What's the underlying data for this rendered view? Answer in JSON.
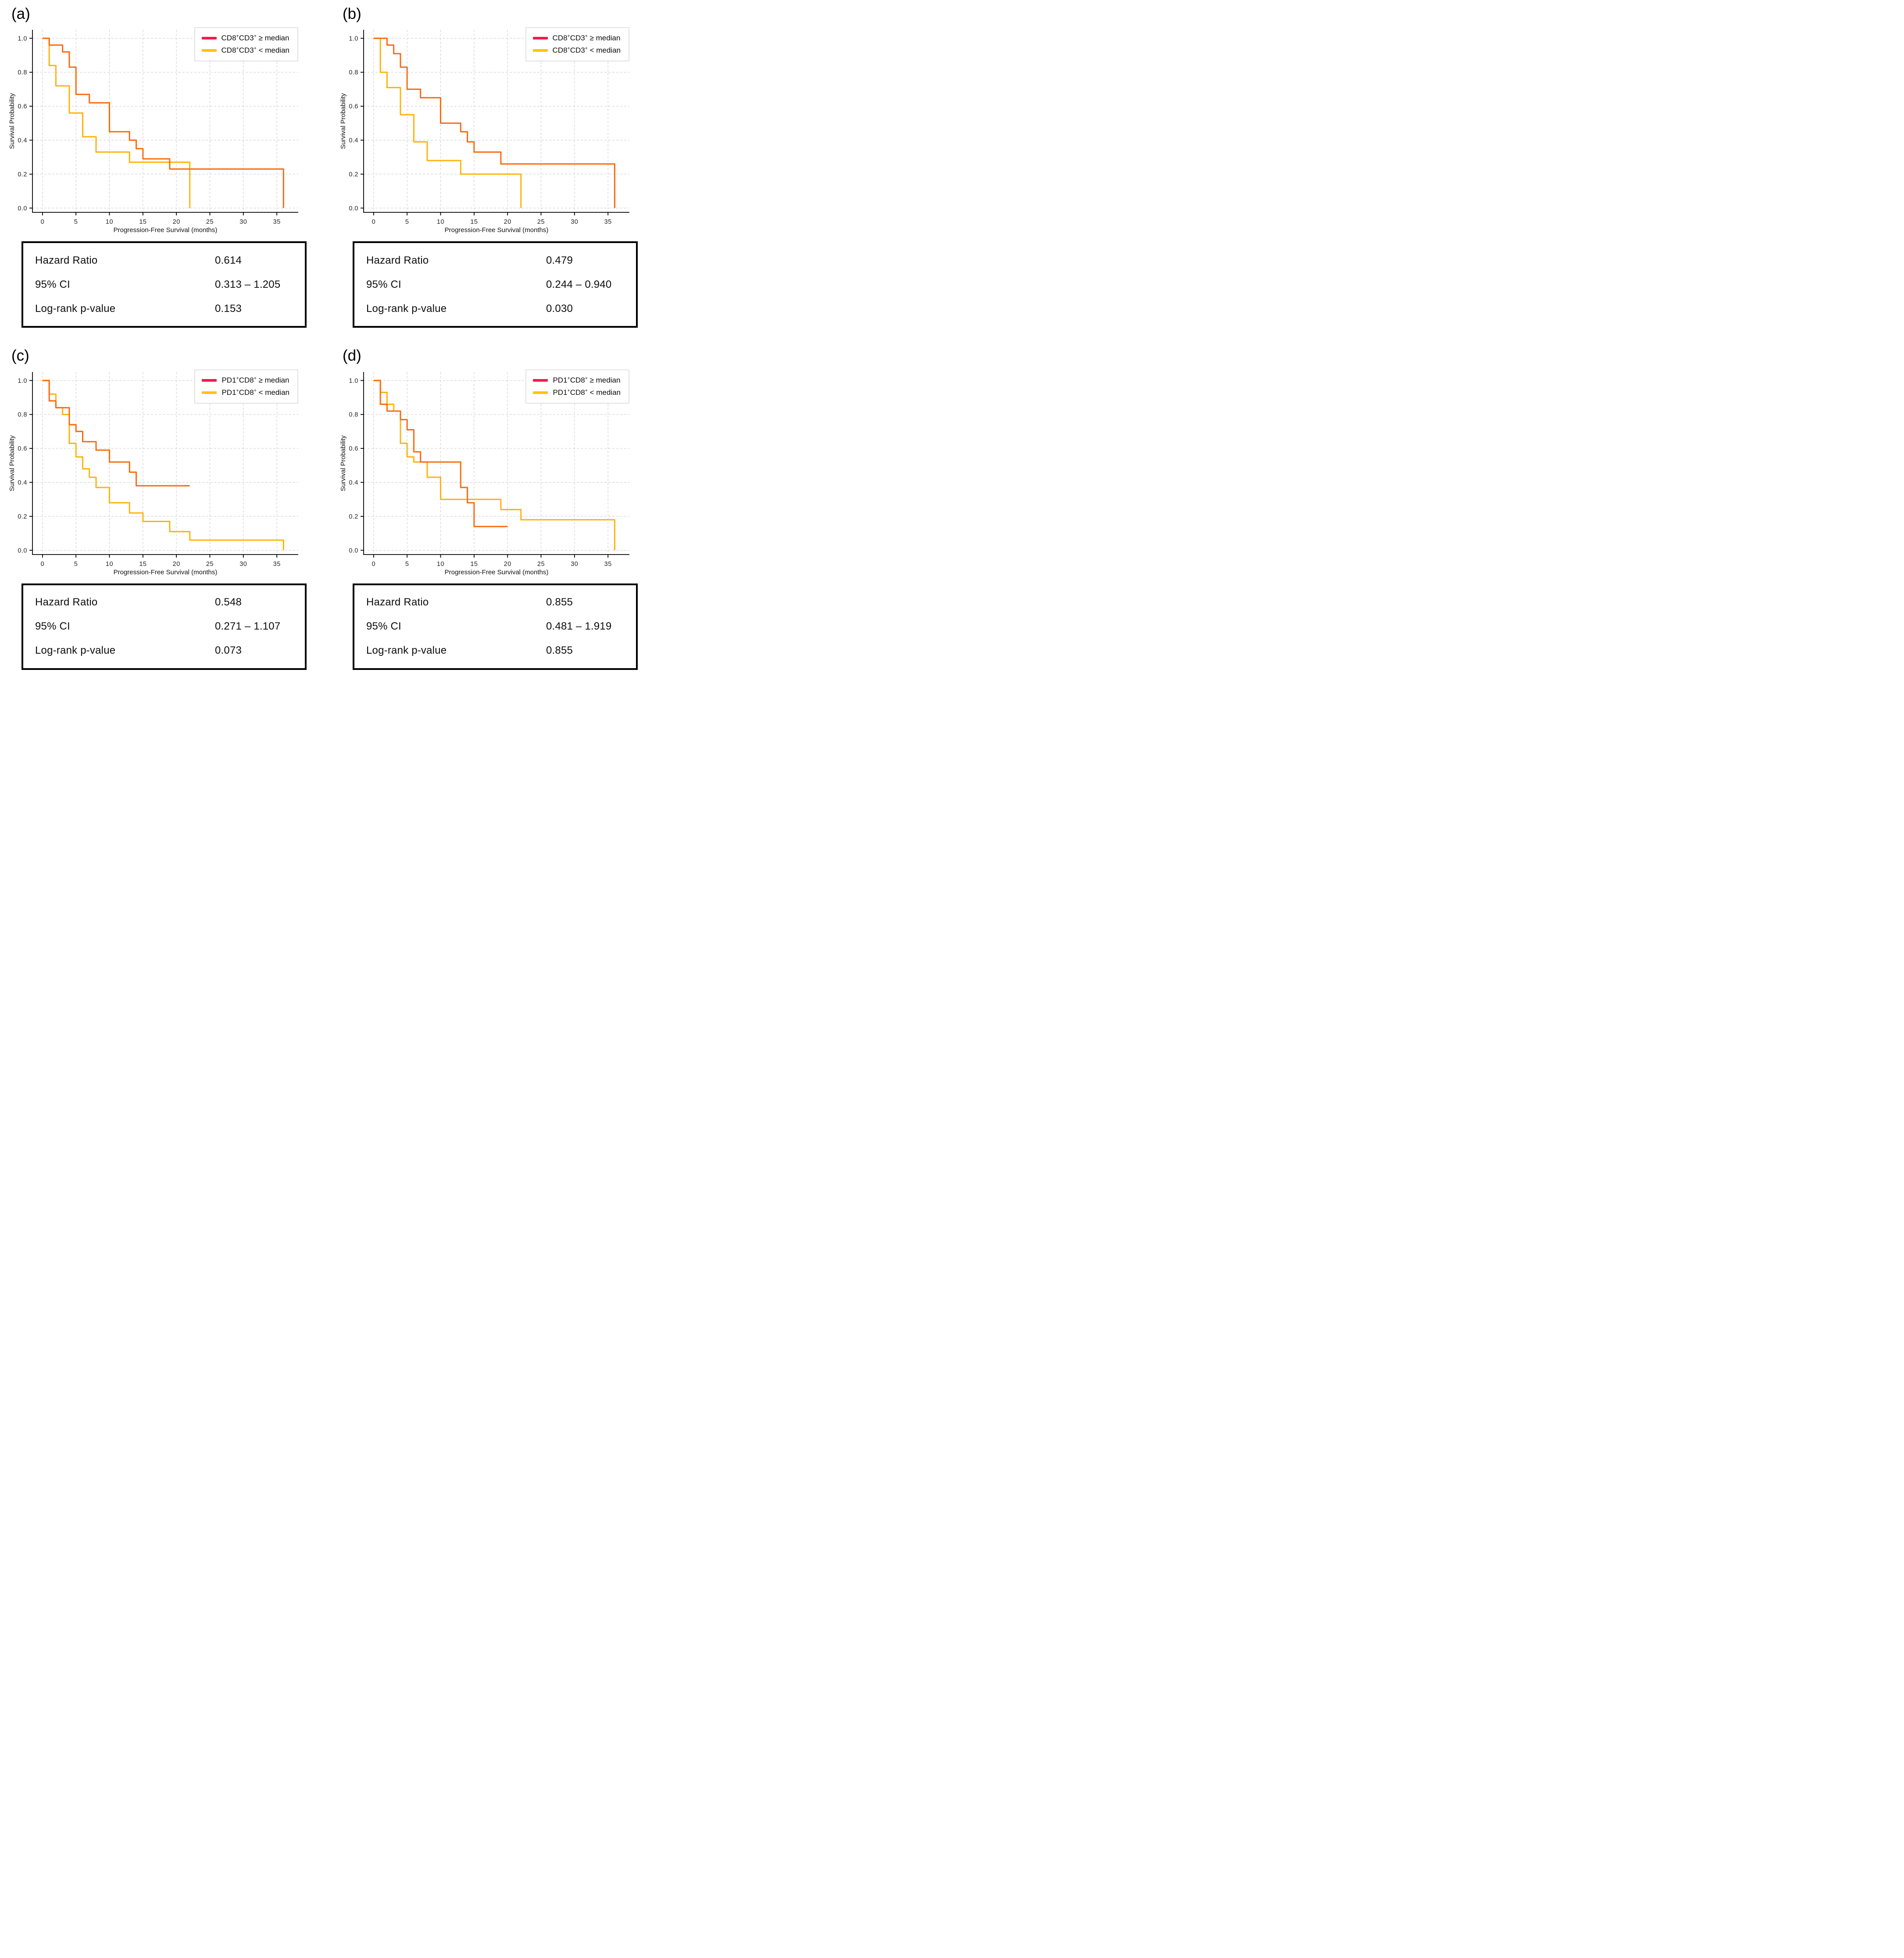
{
  "stats_labels": [
    "Hazard Ratio",
    "95% CI",
    "Log-rank p-value"
  ],
  "colors": {
    "ge_line": "#FA6A0D",
    "lt_line": "#FFB20B",
    "ge_swatch": "#F31B4C",
    "lt_swatch": "#FFC400",
    "grid": "#c9c9c9",
    "axis": "#000000"
  },
  "chart_data": [
    {
      "type": "line",
      "panel": "(a)",
      "step_mode": "post",
      "xlabel": "Progression-Free Survival (months)",
      "ylabel": "Survival Probability",
      "xlim": [
        -1.5,
        38.2
      ],
      "ylim": [
        -0.025,
        1.05
      ],
      "x_ticks": [
        0,
        5,
        10,
        15,
        20,
        25,
        30,
        35
      ],
      "x_tick_labels": [
        "0",
        "5",
        "10",
        "15",
        "20",
        "25",
        "30",
        "35"
      ],
      "y_ticks": [
        0.0,
        0.2,
        0.4,
        0.6,
        0.8,
        1.0
      ],
      "y_tick_labels": [
        "0.0",
        "0.2",
        "0.4",
        "0.6",
        "0.8",
        "1.0"
      ],
      "grid": true,
      "legend_position": "upper right",
      "series": [
        {
          "name": "CD8+CD3+ >= median",
          "color": "#FA6A0D",
          "legend_swatch": "#F31B4C",
          "steps": [
            [
              0,
              1.0
            ],
            [
              1,
              0.96
            ],
            [
              3,
              0.92
            ],
            [
              4,
              0.83
            ],
            [
              5,
              0.67
            ],
            [
              7,
              0.62
            ],
            [
              10,
              0.45
            ],
            [
              13,
              0.4
            ],
            [
              14,
              0.35
            ],
            [
              15,
              0.29
            ],
            [
              19,
              0.23
            ]
          ],
          "end_time": 36,
          "end_drop_to_zero": true
        },
        {
          "name": "CD8+CD3+ < median",
          "color": "#FFB20B",
          "legend_swatch": "#FFC400",
          "steps": [
            [
              0,
              1.0
            ],
            [
              1,
              0.84
            ],
            [
              2,
              0.72
            ],
            [
              4,
              0.56
            ],
            [
              6,
              0.42
            ],
            [
              8,
              0.33
            ],
            [
              13,
              0.27
            ]
          ],
          "end_time": 22,
          "end_drop_to_zero": true
        }
      ]
    },
    {
      "type": "line",
      "panel": "(b)",
      "step_mode": "post",
      "xlabel": "Progression-Free Survival (months)",
      "ylabel": "Survival Probability",
      "xlim": [
        -1.5,
        38.2
      ],
      "ylim": [
        -0.025,
        1.05
      ],
      "x_ticks": [
        0,
        5,
        10,
        15,
        20,
        25,
        30,
        35
      ],
      "x_tick_labels": [
        "0",
        "5",
        "10",
        "15",
        "20",
        "25",
        "30",
        "35"
      ],
      "y_ticks": [
        0.0,
        0.2,
        0.4,
        0.6,
        0.8,
        1.0
      ],
      "y_tick_labels": [
        "0.0",
        "0.2",
        "0.4",
        "0.6",
        "0.8",
        "1.0"
      ],
      "grid": true,
      "legend_position": "upper right",
      "series": [
        {
          "name": "CD8+CD3+ >= median",
          "color": "#FA6A0D",
          "legend_swatch": "#F31B4C",
          "steps": [
            [
              0,
              1.0
            ],
            [
              2,
              0.96
            ],
            [
              3,
              0.91
            ],
            [
              4,
              0.83
            ],
            [
              5,
              0.7
            ],
            [
              7,
              0.65
            ],
            [
              10,
              0.5
            ],
            [
              13,
              0.45
            ],
            [
              14,
              0.39
            ],
            [
              15,
              0.33
            ],
            [
              19,
              0.26
            ]
          ],
          "end_time": 36,
          "end_drop_to_zero": true
        },
        {
          "name": "CD8+CD3+ < median",
          "color": "#FFB20B",
          "legend_swatch": "#FFC400",
          "steps": [
            [
              0,
              1.0
            ],
            [
              1,
              0.8
            ],
            [
              2,
              0.71
            ],
            [
              4,
              0.55
            ],
            [
              6,
              0.39
            ],
            [
              8,
              0.28
            ],
            [
              13,
              0.2
            ]
          ],
          "end_time": 22,
          "end_drop_to_zero": true
        }
      ]
    },
    {
      "type": "line",
      "panel": "(c)",
      "step_mode": "post",
      "xlabel": "Progression-Free Survival (months)",
      "ylabel": "Survival Probability",
      "xlim": [
        -1.5,
        38.2
      ],
      "ylim": [
        -0.025,
        1.05
      ],
      "x_ticks": [
        0,
        5,
        10,
        15,
        20,
        25,
        30,
        35
      ],
      "x_tick_labels": [
        "0",
        "5",
        "10",
        "15",
        "20",
        "25",
        "30",
        "35"
      ],
      "y_ticks": [
        0.0,
        0.2,
        0.4,
        0.6,
        0.8,
        1.0
      ],
      "y_tick_labels": [
        "0.0",
        "0.2",
        "0.4",
        "0.6",
        "0.8",
        "1.0"
      ],
      "grid": true,
      "legend_position": "upper right",
      "series": [
        {
          "name": "PD1+CD8+ >= median",
          "color": "#FA6A0D",
          "legend_swatch": "#F31B4C",
          "steps": [
            [
              0,
              1.0
            ],
            [
              1,
              0.88
            ],
            [
              2,
              0.84
            ],
            [
              4,
              0.74
            ],
            [
              5,
              0.7
            ],
            [
              6,
              0.64
            ],
            [
              8,
              0.59
            ],
            [
              10,
              0.52
            ],
            [
              13,
              0.46
            ],
            [
              14,
              0.38
            ]
          ],
          "end_time": 22,
          "end_drop_to_zero": false
        },
        {
          "name": "PD1+CD8+ < median",
          "color": "#FFB20B",
          "legend_swatch": "#FFC400",
          "steps": [
            [
              0,
              1.0
            ],
            [
              1,
              0.92
            ],
            [
              2,
              0.84
            ],
            [
              3,
              0.8
            ],
            [
              4,
              0.63
            ],
            [
              5,
              0.55
            ],
            [
              6,
              0.48
            ],
            [
              7,
              0.43
            ],
            [
              8,
              0.37
            ],
            [
              10,
              0.28
            ],
            [
              13,
              0.22
            ],
            [
              15,
              0.17
            ],
            [
              19,
              0.11
            ],
            [
              22,
              0.06
            ]
          ],
          "end_time": 36,
          "end_drop_to_zero": true
        }
      ]
    },
    {
      "type": "line",
      "panel": "(d)",
      "step_mode": "post",
      "xlabel": "Progression-Free Survival (months)",
      "ylabel": "Survival Probability",
      "xlim": [
        -1.5,
        38.2
      ],
      "ylim": [
        -0.025,
        1.05
      ],
      "x_ticks": [
        0,
        5,
        10,
        15,
        20,
        25,
        30,
        35
      ],
      "x_tick_labels": [
        "0",
        "5",
        "10",
        "15",
        "20",
        "25",
        "30",
        "35"
      ],
      "y_ticks": [
        0.0,
        0.2,
        0.4,
        0.6,
        0.8,
        1.0
      ],
      "y_tick_labels": [
        "0.0",
        "0.2",
        "0.4",
        "0.6",
        "0.8",
        "1.0"
      ],
      "grid": true,
      "legend_position": "upper right",
      "series": [
        {
          "name": "PD1+CD8+ >= median",
          "color": "#FA6A0D",
          "legend_swatch": "#F31B4C",
          "steps": [
            [
              0,
              1.0
            ],
            [
              1,
              0.86
            ],
            [
              2,
              0.82
            ],
            [
              4,
              0.77
            ],
            [
              5,
              0.71
            ],
            [
              6,
              0.58
            ],
            [
              7,
              0.52
            ],
            [
              13,
              0.37
            ],
            [
              14,
              0.28
            ],
            [
              15,
              0.14
            ]
          ],
          "end_time": 20,
          "end_drop_to_zero": false
        },
        {
          "name": "PD1+CD8+ < median",
          "color": "#FFB20B",
          "legend_swatch": "#FFC400",
          "steps": [
            [
              0,
              1.0
            ],
            [
              1,
              0.93
            ],
            [
              2,
              0.86
            ],
            [
              3,
              0.82
            ],
            [
              4,
              0.63
            ],
            [
              5,
              0.55
            ],
            [
              6,
              0.52
            ],
            [
              8,
              0.43
            ],
            [
              10,
              0.3
            ],
            [
              19,
              0.24
            ],
            [
              22,
              0.18
            ]
          ],
          "end_time": 36,
          "end_drop_to_zero": true
        }
      ]
    }
  ],
  "panels": [
    {
      "label": "(a)",
      "legend": [
        {
          "segments": [
            {
              "t": "CD8"
            },
            {
              "t": "+",
              "sup": true
            },
            {
              "t": "CD3"
            },
            {
              "t": "+",
              "sup": true
            },
            {
              "t": " ≥ median"
            }
          ]
        },
        {
          "segments": [
            {
              "t": "CD8"
            },
            {
              "t": "+",
              "sup": true
            },
            {
              "t": "CD3"
            },
            {
              "t": "+",
              "sup": true
            },
            {
              "t": " < median"
            }
          ]
        }
      ],
      "stats": {
        "values": [
          "0.614",
          "0.313 – 1.205",
          "0.153"
        ]
      }
    },
    {
      "label": "(b)",
      "legend": [
        {
          "segments": [
            {
              "t": "CD8"
            },
            {
              "t": "+",
              "sup": true
            },
            {
              "t": "CD3"
            },
            {
              "t": "+",
              "sup": true
            },
            {
              "t": " ≥ median"
            }
          ]
        },
        {
          "segments": [
            {
              "t": "CD8"
            },
            {
              "t": "+",
              "sup": true
            },
            {
              "t": "CD3"
            },
            {
              "t": "+",
              "sup": true
            },
            {
              "t": " < median"
            }
          ]
        }
      ],
      "stats": {
        "values": [
          "0.479",
          "0.244 – 0.940",
          "0.030"
        ]
      }
    },
    {
      "label": "(c)",
      "legend": [
        {
          "segments": [
            {
              "t": "PD1"
            },
            {
              "t": "+",
              "sup": true
            },
            {
              "t": "CD8"
            },
            {
              "t": "+",
              "sup": true
            },
            {
              "t": " ≥ median"
            }
          ]
        },
        {
          "segments": [
            {
              "t": "PD1"
            },
            {
              "t": "+",
              "sup": true
            },
            {
              "t": "CD8"
            },
            {
              "t": "+",
              "sup": true
            },
            {
              "t": " < median"
            }
          ]
        }
      ],
      "stats": {
        "values": [
          "0.548",
          "0.271 – 1.107",
          "0.073"
        ]
      }
    },
    {
      "label": "(d)",
      "legend": [
        {
          "segments": [
            {
              "t": "PD1"
            },
            {
              "t": "+",
              "sup": true
            },
            {
              "t": "CD8"
            },
            {
              "t": "+",
              "sup": true
            },
            {
              "t": " ≥ median"
            }
          ]
        },
        {
          "segments": [
            {
              "t": "PD1"
            },
            {
              "t": "+",
              "sup": true
            },
            {
              "t": "CD8"
            },
            {
              "t": "+",
              "sup": true
            },
            {
              "t": " < median"
            }
          ]
        }
      ],
      "stats": {
        "values": [
          "0.855",
          "0.481 – 1.919",
          "0.855"
        ]
      }
    }
  ]
}
